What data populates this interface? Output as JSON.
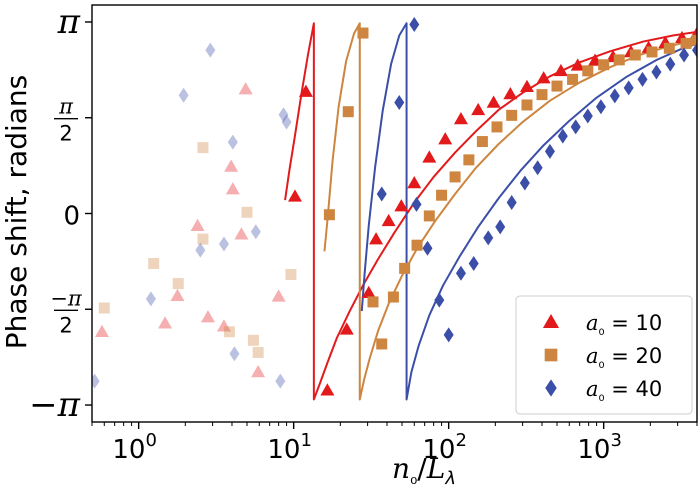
{
  "chart_data": {
    "type": "scatter",
    "title": "",
    "xlabel": "n₀/Lλ",
    "ylabel": "Phase shift, radians",
    "xscale": "log",
    "xlim": [
      0.5,
      4000
    ],
    "ylim": [
      -3.42,
      3.42
    ],
    "xticks": [
      {
        "value": 1,
        "base": "10",
        "exp": "0"
      },
      {
        "value": 10,
        "base": "10",
        "exp": "1"
      },
      {
        "value": 100,
        "base": "10",
        "exp": "2"
      },
      {
        "value": 1000,
        "base": "10",
        "exp": "3"
      }
    ],
    "yticks": [
      {
        "value": 3.14159,
        "label": "π"
      },
      {
        "value": 1.5708,
        "num": "π",
        "den": "2"
      },
      {
        "value": 0,
        "label": "0"
      },
      {
        "value": -1.5708,
        "num": "−π",
        "den": "2"
      },
      {
        "value": -3.14159,
        "label": "−π"
      }
    ],
    "grid": false,
    "legend": {
      "position": "lower-right",
      "entries": [
        {
          "label": "a₀ = 10",
          "marker": "triangle",
          "color": "#e31a1c"
        },
        {
          "label": "a₀ = 20",
          "marker": "square",
          "color": "#cd853f"
        },
        {
          "label": "a₀ = 40",
          "marker": "diamond",
          "color": "#3b4ea8"
        }
      ]
    },
    "series": [
      {
        "marker": "triangle",
        "color": "#e31a1c",
        "points": [
          [
            10.2,
            0.28
          ],
          [
            12.0,
            2.0
          ],
          [
            16.5,
            -2.9
          ],
          [
            22.0,
            -1.9
          ],
          [
            30.5,
            -1.3
          ],
          [
            34.0,
            -0.42
          ],
          [
            41.0,
            -0.12
          ],
          [
            49.5,
            0.12
          ],
          [
            60.0,
            0.5
          ],
          [
            75.0,
            0.92
          ],
          [
            95.0,
            1.22
          ],
          [
            120.0,
            1.55
          ],
          [
            155.0,
            1.7
          ],
          [
            195.0,
            1.82
          ],
          [
            250.0,
            1.96
          ],
          [
            320.0,
            2.08
          ],
          [
            410.0,
            2.22
          ],
          [
            530.0,
            2.34
          ],
          [
            680.0,
            2.43
          ],
          [
            880.0,
            2.51
          ],
          [
            1150.0,
            2.57
          ],
          [
            1500.0,
            2.65
          ],
          [
            1950.0,
            2.72
          ],
          [
            2500.0,
            2.8
          ],
          [
            3200.0,
            2.88
          ],
          [
            3950.0,
            2.93
          ]
        ]
      },
      {
        "marker": "square",
        "color": "#cd853f",
        "points": [
          [
            17.0,
            -0.02
          ],
          [
            22.5,
            1.67
          ],
          [
            28.0,
            2.96
          ],
          [
            32.5,
            -1.45
          ],
          [
            37.0,
            -2.14
          ],
          [
            44.0,
            -1.37
          ],
          [
            52.0,
            -0.9
          ],
          [
            62.5,
            -0.52
          ],
          [
            75.0,
            -0.04
          ],
          [
            90.0,
            0.3
          ],
          [
            110.0,
            0.6
          ],
          [
            135.0,
            0.88
          ],
          [
            165.0,
            1.18
          ],
          [
            205.0,
            1.42
          ],
          [
            255.0,
            1.61
          ],
          [
            320.0,
            1.78
          ],
          [
            400.0,
            1.95
          ],
          [
            500.0,
            2.09
          ],
          [
            630.0,
            2.2
          ],
          [
            790.0,
            2.34
          ],
          [
            1000.0,
            2.44
          ],
          [
            1260.0,
            2.52
          ],
          [
            1600.0,
            2.6
          ],
          [
            2050.0,
            2.65
          ],
          [
            2650.0,
            2.71
          ],
          [
            3400.0,
            2.79
          ],
          [
            4000.0,
            2.84
          ]
        ]
      },
      {
        "marker": "diamond",
        "color": "#3b4ea8",
        "points": [
          [
            37.0,
            0.32
          ],
          [
            48.0,
            1.82
          ],
          [
            60.0,
            3.1
          ],
          [
            62.0,
            0.15
          ],
          [
            73.0,
            -0.57
          ],
          [
            87.0,
            -1.42
          ],
          [
            100.0,
            -1.99
          ],
          [
            120.0,
            -0.98
          ],
          [
            145.0,
            -0.82
          ],
          [
            180.0,
            -0.4
          ],
          [
            215.0,
            -0.22
          ],
          [
            255.0,
            0.18
          ],
          [
            310.0,
            0.5
          ],
          [
            375.0,
            0.75
          ],
          [
            450.0,
            1.02
          ],
          [
            545.0,
            1.27
          ],
          [
            660.0,
            1.42
          ],
          [
            790.0,
            1.6
          ],
          [
            960.0,
            1.75
          ],
          [
            1180.0,
            1.93
          ],
          [
            1450.0,
            2.06
          ],
          [
            1780.0,
            2.2
          ],
          [
            2190.0,
            2.32
          ],
          [
            2690.0,
            2.45
          ],
          [
            3300.0,
            2.6
          ],
          [
            4000.0,
            2.68
          ]
        ]
      },
      {
        "marker": "triangle",
        "color": "#e31a1c",
        "faded": true,
        "points": [
          [
            0.58,
            -1.94
          ],
          [
            1.48,
            -1.8
          ],
          [
            1.78,
            -1.35
          ],
          [
            2.4,
            -0.2
          ],
          [
            2.8,
            -1.7
          ],
          [
            3.55,
            -1.85
          ],
          [
            3.95,
            0.77
          ],
          [
            4.05,
            0.4
          ],
          [
            4.6,
            -0.34
          ],
          [
            4.9,
            2.04
          ],
          [
            5.9,
            -2.6
          ],
          [
            8.0,
            -1.36
          ]
        ]
      },
      {
        "marker": "square",
        "color": "#cd853f",
        "faded": true,
        "points": [
          [
            0.6,
            -1.55
          ],
          [
            1.25,
            -0.82
          ],
          [
            1.8,
            -1.15
          ],
          [
            2.6,
            1.08
          ],
          [
            2.6,
            -0.42
          ],
          [
            3.85,
            -1.94
          ],
          [
            5.0,
            0.02
          ],
          [
            5.5,
            -2.08
          ],
          [
            5.9,
            -2.28
          ],
          [
            9.6,
            -1.0
          ]
        ]
      },
      {
        "marker": "diamond",
        "color": "#3b4ea8",
        "faded": true,
        "points": [
          [
            0.52,
            -2.75
          ],
          [
            1.2,
            -1.4
          ],
          [
            1.95,
            1.94
          ],
          [
            2.5,
            -0.6
          ],
          [
            2.9,
            2.68
          ],
          [
            3.55,
            -0.5
          ],
          [
            4.05,
            1.17
          ],
          [
            4.15,
            -2.3
          ],
          [
            5.7,
            -0.3
          ],
          [
            8.2,
            -2.75
          ],
          [
            8.6,
            1.62
          ],
          [
            9.0,
            1.5
          ]
        ]
      }
    ],
    "fitted_curves": [
      {
        "color": "#e31a1c",
        "points": [
          [
            8.8,
            0.22
          ],
          [
            9.4,
            0.72
          ],
          [
            10.2,
            1.28
          ],
          [
            11.2,
            1.95
          ],
          [
            12.4,
            2.62
          ],
          [
            13.5,
            3.12
          ],
          [
            13.5,
            -3.05
          ],
          [
            14.8,
            -2.78
          ],
          [
            16.5,
            -2.45
          ],
          [
            19.0,
            -2.04
          ],
          [
            23.0,
            -1.6
          ],
          [
            28.0,
            -1.18
          ],
          [
            35.0,
            -0.75
          ],
          [
            45.0,
            -0.3
          ],
          [
            60.0,
            0.18
          ],
          [
            80.0,
            0.6
          ],
          [
            110.0,
            1.0
          ],
          [
            150.0,
            1.35
          ],
          [
            210.0,
            1.7
          ],
          [
            300.0,
            1.98
          ],
          [
            450.0,
            2.25
          ],
          [
            700.0,
            2.48
          ],
          [
            1100.0,
            2.66
          ],
          [
            1800.0,
            2.82
          ],
          [
            2800.0,
            2.92
          ],
          [
            4000.0,
            2.98
          ]
        ]
      },
      {
        "color": "#cd853f",
        "points": [
          [
            15.8,
            -0.62
          ],
          [
            16.6,
            -0.05
          ],
          [
            17.8,
            0.85
          ],
          [
            19.5,
            1.75
          ],
          [
            21.8,
            2.5
          ],
          [
            24.5,
            2.95
          ],
          [
            26.7,
            3.12
          ],
          [
            26.7,
            -3.05
          ],
          [
            28.5,
            -2.72
          ],
          [
            31.0,
            -2.37
          ],
          [
            35.0,
            -1.93
          ],
          [
            41.0,
            -1.48
          ],
          [
            50.0,
            -1.02
          ],
          [
            63.0,
            -0.56
          ],
          [
            82.0,
            -0.12
          ],
          [
            110.0,
            0.32
          ],
          [
            150.0,
            0.75
          ],
          [
            210.0,
            1.14
          ],
          [
            300.0,
            1.5
          ],
          [
            450.0,
            1.85
          ],
          [
            700.0,
            2.15
          ],
          [
            1100.0,
            2.4
          ],
          [
            1700.0,
            2.6
          ],
          [
            2700.0,
            2.75
          ],
          [
            4000.0,
            2.85
          ]
        ]
      },
      {
        "color": "#3b4ea8",
        "points": [
          [
            27.5,
            -1.6
          ],
          [
            28.7,
            -0.98
          ],
          [
            30.5,
            -0.2
          ],
          [
            33.5,
            0.75
          ],
          [
            37.5,
            1.68
          ],
          [
            42.5,
            2.45
          ],
          [
            48.0,
            2.92
          ],
          [
            53.5,
            3.12
          ],
          [
            53.5,
            -3.05
          ],
          [
            57.5,
            -2.6
          ],
          [
            64.0,
            -2.17
          ],
          [
            75.0,
            -1.67
          ],
          [
            92.0,
            -1.18
          ],
          [
            118.0,
            -0.7
          ],
          [
            155.0,
            -0.22
          ],
          [
            210.0,
            0.25
          ],
          [
            290.0,
            0.7
          ],
          [
            410.0,
            1.12
          ],
          [
            600.0,
            1.52
          ],
          [
            900.0,
            1.9
          ],
          [
            1400.0,
            2.24
          ],
          [
            2200.0,
            2.52
          ],
          [
            3300.0,
            2.72
          ],
          [
            4000.0,
            2.78
          ]
        ]
      }
    ]
  }
}
